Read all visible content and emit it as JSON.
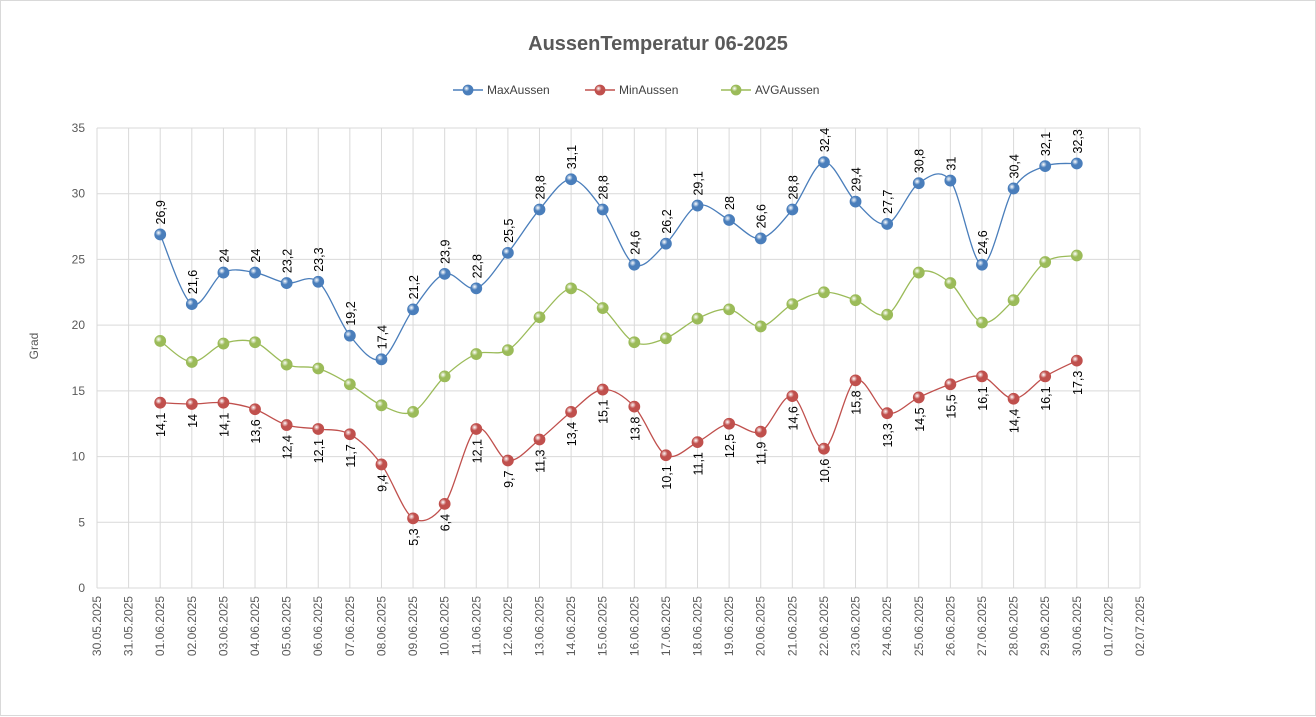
{
  "chart_data": {
    "type": "line",
    "title": "AussenTemperatur 06-2025",
    "ylabel": "Grad",
    "xlabel": "",
    "ylim": [
      0,
      35
    ],
    "yticks": [
      0,
      5,
      10,
      15,
      20,
      25,
      30,
      35
    ],
    "grid": true,
    "legend_position": "top",
    "categories": [
      "30.05.2025",
      "31.05.2025",
      "01.06.2025",
      "02.06.2025",
      "03.06.2025",
      "04.06.2025",
      "05.06.2025",
      "06.06.2025",
      "07.06.2025",
      "08.06.2025",
      "09.06.2025",
      "10.06.2025",
      "11.06.2025",
      "12.06.2025",
      "13.06.2025",
      "14.06.2025",
      "15.06.2025",
      "16.06.2025",
      "17.06.2025",
      "18.06.2025",
      "19.06.2025",
      "20.06.2025",
      "21.06.2025",
      "22.06.2025",
      "23.06.2025",
      "24.06.2025",
      "25.06.2025",
      "26.06.2025",
      "27.06.2025",
      "28.06.2025",
      "29.06.2025",
      "30.06.2025",
      "01.07.2025",
      "02.07.2025"
    ],
    "series": [
      {
        "name": "MaxAussen",
        "color": "#4a7ebb",
        "label_position": "above",
        "values": [
          null,
          null,
          26.9,
          21.6,
          24,
          24,
          23.2,
          23.3,
          19.2,
          17.4,
          21.2,
          23.9,
          22.8,
          25.5,
          28.8,
          31.1,
          28.8,
          24.6,
          26.2,
          29.1,
          28,
          26.6,
          28.8,
          32.4,
          29.4,
          27.7,
          30.8,
          31,
          24.6,
          30.4,
          32.1,
          32.3,
          null,
          null
        ],
        "labels": [
          null,
          null,
          "26,9",
          "21,6",
          "24",
          "24",
          "23,2",
          "23,3",
          "19,2",
          "17,4",
          "21,2",
          "23,9",
          "22,8",
          "25,5",
          "28,8",
          "31,1",
          "28,8",
          "24,6",
          "26,2",
          "29,1",
          "28",
          "26,6",
          "28,8",
          "32,4",
          "29,4",
          "27,7",
          "30,8",
          "31",
          "24,6",
          "30,4",
          "32,1",
          "32,3",
          null,
          null
        ]
      },
      {
        "name": "MinAussen",
        "color": "#c0504d",
        "label_position": "below",
        "values": [
          null,
          null,
          14.1,
          14,
          14.1,
          13.6,
          12.4,
          12.1,
          11.7,
          9.4,
          5.3,
          6.4,
          12.1,
          9.7,
          11.3,
          13.4,
          15.1,
          13.8,
          10.1,
          11.1,
          12.5,
          11.9,
          14.6,
          10.6,
          15.8,
          13.3,
          14.5,
          15.5,
          16.1,
          14.4,
          16.1,
          17.3,
          null,
          null
        ],
        "labels": [
          null,
          null,
          "14,1",
          "14",
          "14,1",
          "13,6",
          "12,4",
          "12,1",
          "11,7",
          "9,4",
          "5,3",
          "6,4",
          "12,1",
          "9,7",
          "11,3",
          "13,4",
          "15,1",
          "13,8",
          "10,1",
          "11,1",
          "12,5",
          "11,9",
          "14,6",
          "10,6",
          "15,8",
          "13,3",
          "14,5",
          "15,5",
          "16,1",
          "14,4",
          "16,1",
          "17,3",
          null,
          null
        ]
      },
      {
        "name": "AVGAussen",
        "color": "#9bbb59",
        "label_position": "none",
        "values": [
          null,
          null,
          18.8,
          17.2,
          18.6,
          18.7,
          17,
          16.7,
          15.5,
          13.9,
          13.4,
          16.1,
          17.8,
          18.1,
          20.6,
          22.8,
          21.3,
          18.7,
          19,
          20.5,
          21.2,
          19.9,
          21.6,
          22.5,
          21.9,
          20.8,
          24,
          23.2,
          20.2,
          21.9,
          24.8,
          25.3,
          null,
          null
        ],
        "labels": []
      }
    ]
  }
}
